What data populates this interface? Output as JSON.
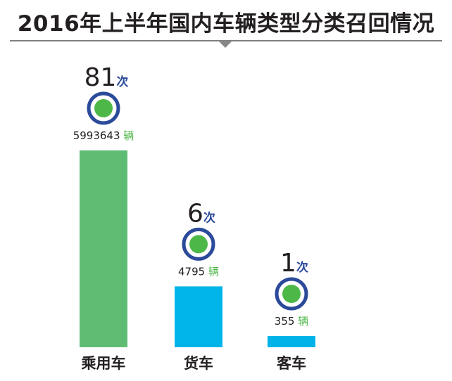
{
  "title": "2016年上半年国内车辆类型分类召回情况",
  "units": {
    "times": "次",
    "vehicles": "辆"
  },
  "colors": {
    "rule": "#555555",
    "pointer": "#888888",
    "ring": "#2b4a9a",
    "dot": "#4db848",
    "times_unit": "#2b4a9a",
    "vehicles_unit": "#4db848",
    "number": "#231f20"
  },
  "chart_data": {
    "type": "bar",
    "title": "2016年上半年国内车辆类型分类召回情况",
    "categories": [
      "乘用车",
      "货车",
      "客车"
    ],
    "series": [
      {
        "values": [
          5993643,
          4795,
          355
        ]
      }
    ],
    "recall_counts": [
      81,
      6,
      1
    ],
    "bar_colors": [
      "#5fbd73",
      "#00b4ea",
      "#00b4ea"
    ],
    "value_unit": "辆",
    "count_unit": "次",
    "grid": false,
    "legend": "none"
  }
}
